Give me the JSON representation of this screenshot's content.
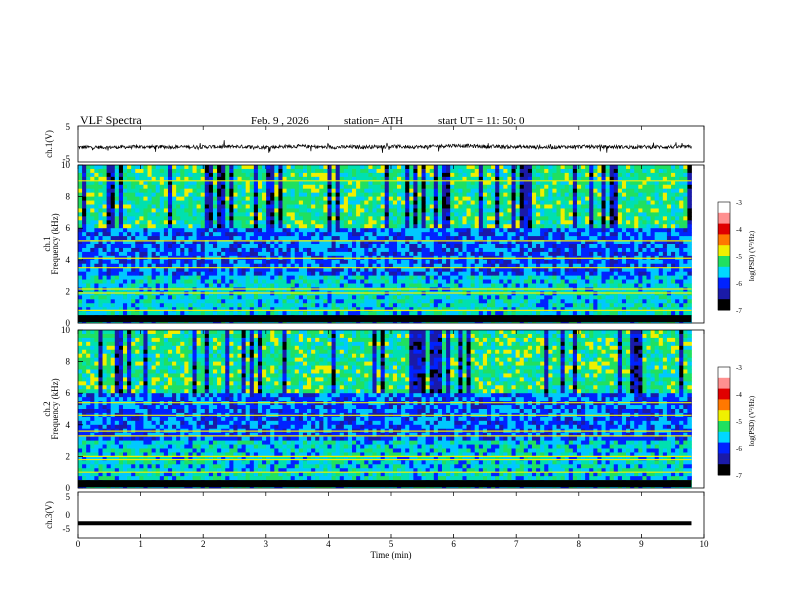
{
  "header": {
    "title": "VLF  Spectra",
    "date": "Feb. 9  , 2026",
    "station": "station= ATH",
    "start": "start  UT  =   11: 50: 0"
  },
  "colors": {
    "waveform": "#000000",
    "colormap": [
      "#000000",
      "#1a1aa8",
      "#0022ff",
      "#00c8ff",
      "#00e0b0",
      "#20e060",
      "#f0f000",
      "#ff7800",
      "#e00000",
      "#ffffff"
    ]
  },
  "chart_data": [
    {
      "type": "line",
      "name": "ch1",
      "ylabel": "ch.1(V)",
      "ylim": [
        -5,
        5
      ],
      "yticks": [
        "5",
        "-5"
      ],
      "approx_level": -0.8,
      "x": [
        0,
        0.5,
        1,
        1.5,
        2,
        2.5,
        3,
        3.5,
        4,
        4.5,
        5,
        5.5,
        6,
        6.5,
        7,
        7.5,
        8,
        8.5,
        9,
        9.5,
        9.8
      ],
      "y": [
        -0.9,
        -0.9,
        -0.8,
        -0.8,
        -0.8,
        -0.7,
        -0.9,
        -0.6,
        -0.9,
        -0.8,
        -0.7,
        -0.8,
        -0.4,
        -0.7,
        -0.8,
        -0.9,
        -0.7,
        -0.8,
        -0.8,
        -0.8,
        -0.8
      ]
    },
    {
      "type": "heatmap",
      "name": "ch1-spectrogram",
      "ylabel": "ch.1\nFrequency  (kHz)",
      "ylim": [
        0,
        10
      ],
      "yticks": [
        "0",
        "2",
        "4",
        "6",
        "8",
        "10"
      ],
      "colorbar": {
        "label": "log(PSD) (V²/Hz)",
        "range": [
          -7,
          -3
        ],
        "ticks": [
          "-3",
          "-4",
          "-5",
          "-6",
          "-7"
        ]
      },
      "bands_khz": [
        0.3,
        0.8,
        1.9,
        2.15,
        3.5,
        4.1,
        5.2,
        9.0
      ]
    },
    {
      "type": "heatmap",
      "name": "ch2-spectrogram",
      "ylabel": "ch.2\nFrequency  (kHz)",
      "ylim": [
        0,
        10
      ],
      "yticks": [
        "0",
        "2",
        "4",
        "6",
        "8",
        "10"
      ],
      "colorbar": {
        "label": "log(PSD) (V²/Hz)",
        "range": [
          -7,
          -3
        ],
        "ticks": [
          "-3",
          "-4",
          "-5",
          "-6",
          "-7"
        ]
      },
      "bands_khz": [
        0.4,
        1.0,
        1.8,
        2.0,
        3.3,
        3.6,
        4.6,
        5.4
      ]
    },
    {
      "type": "line",
      "name": "ch3",
      "ylabel": "ch.3(V)",
      "ylim": [
        -5,
        5
      ],
      "yticks": [
        "5",
        "0",
        "-5"
      ],
      "x": [
        0,
        9.8
      ],
      "y": [
        -1.8,
        -1.8
      ]
    }
  ],
  "xaxis": {
    "label": "Time  (min)",
    "range": [
      0,
      10
    ],
    "ticks": [
      "0",
      "1",
      "2",
      "3",
      "4",
      "5",
      "6",
      "7",
      "8",
      "9",
      "10"
    ]
  }
}
